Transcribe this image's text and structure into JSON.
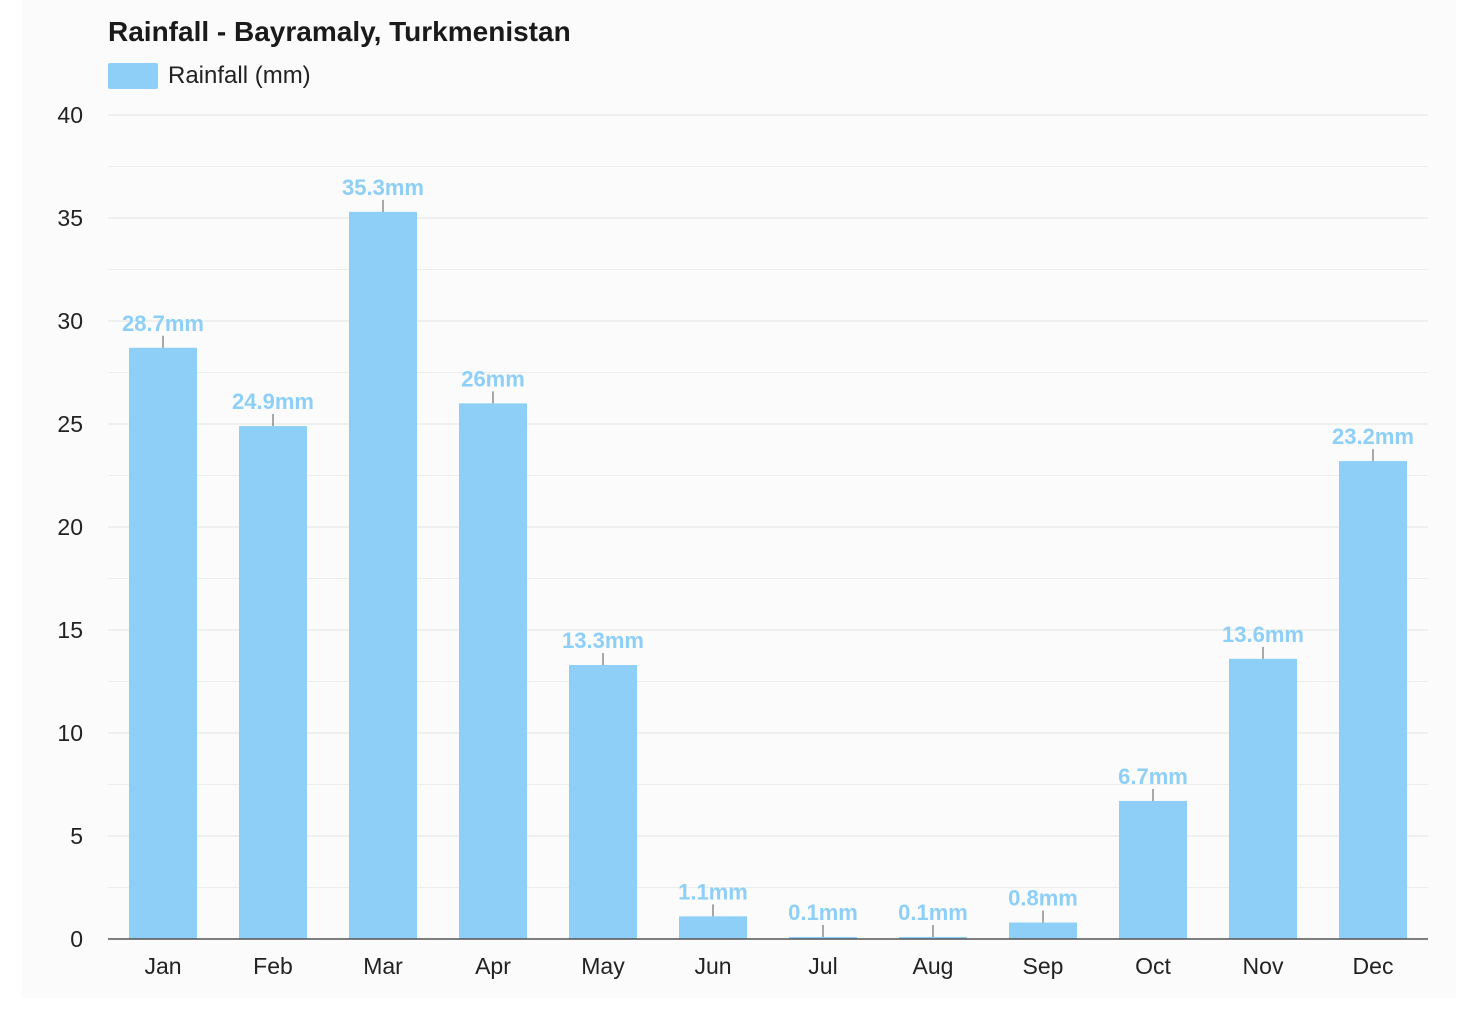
{
  "chart_data": {
    "type": "bar",
    "title": "Rainfall - Bayramaly, Turkmenistan",
    "legend": {
      "entries": [
        "Rainfall (mm)"
      ],
      "position": "top-left"
    },
    "categories": [
      "Jan",
      "Feb",
      "Mar",
      "Apr",
      "May",
      "Jun",
      "Jul",
      "Aug",
      "Sep",
      "Oct",
      "Nov",
      "Dec"
    ],
    "series": [
      {
        "name": "Rainfall (mm)",
        "values": [
          28.7,
          24.9,
          35.3,
          26,
          13.3,
          1.1,
          0.1,
          0.1,
          0.8,
          6.7,
          13.6,
          23.2
        ],
        "data_labels": [
          "28.7mm",
          "24.9mm",
          "35.3mm",
          "26mm",
          "13.3mm",
          "1.1mm",
          "0.1mm",
          "0.1mm",
          "0.8mm",
          "6.7mm",
          "13.6mm",
          "23.2mm"
        ]
      }
    ],
    "xlabel": "",
    "ylabel": "",
    "ylim": [
      0,
      40
    ],
    "yticks": [
      0,
      5,
      10,
      15,
      20,
      25,
      30,
      35,
      40
    ],
    "grid": true
  },
  "colors": {
    "bar": "#8ecff8",
    "data_label": "#8ecff8",
    "grid": "#e3e6e3",
    "axis": "#555555",
    "tick_label": "#222222",
    "background": "#fafbfa"
  }
}
